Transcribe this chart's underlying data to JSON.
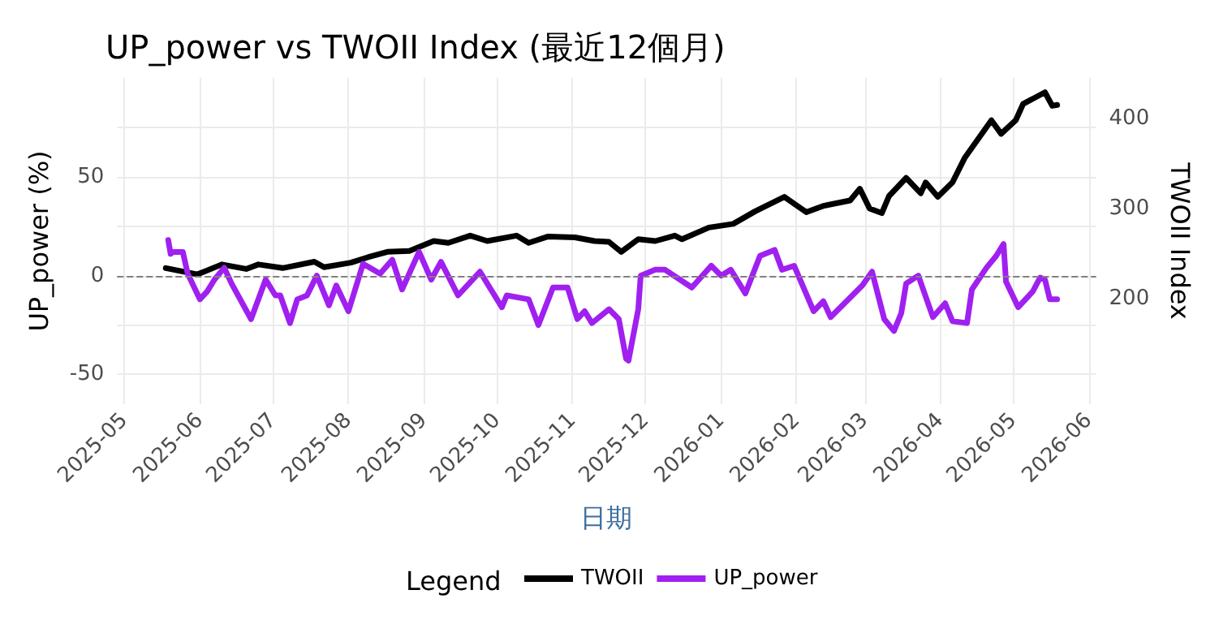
{
  "chart_data": {
    "type": "line",
    "title": "UP_power vs TWOII Index (最近12個月)",
    "xlabel": "日期",
    "ylabel": "UP_power (%)",
    "y2label": "TWOII Index",
    "legend_title": "Legend",
    "legend": "bottom",
    "grid": true,
    "xlim": [
      "2025-04-28",
      "2026-06-04"
    ],
    "xticks": [
      "2025-05",
      "2025-06",
      "2025-07",
      "2025-08",
      "2025-09",
      "2025-10",
      "2025-11",
      "2025-12",
      "2026-01",
      "2026-02",
      "2026-03",
      "2026-04",
      "2026-05",
      "2026-06"
    ],
    "ylim": [
      -65,
      100
    ],
    "yticks": [
      -50,
      {
        "value": -25,
        "label": null
      },
      0,
      {
        "value": 25,
        "label": null
      },
      50,
      {
        "value": 75,
        "label": null
      }
    ],
    "y2lim": [
      83,
      445
    ],
    "y2ticks": [
      200,
      300,
      400
    ],
    "ref_lines": [
      {
        "axis": "y",
        "value": 0,
        "label": null,
        "color": "#808080",
        "line_style": "dashed"
      }
    ],
    "series": [
      {
        "name": "TWOII",
        "color": "#000000",
        "axis": "y2",
        "x": [
          "2025-05-18",
          "2025-05-31",
          "2025-06-10",
          "2025-06-20",
          "2025-06-25",
          "2025-07-05",
          "2025-07-18",
          "2025-07-22",
          "2025-08-02",
          "2025-08-09",
          "2025-08-17",
          "2025-08-26",
          "2025-09-05",
          "2025-09-11",
          "2025-09-20",
          "2025-09-27",
          "2025-10-09",
          "2025-10-14",
          "2025-10-22",
          "2025-11-02",
          "2025-11-10",
          "2025-11-16",
          "2025-11-21",
          "2025-11-28",
          "2025-12-05",
          "2025-12-13",
          "2025-12-16",
          "2025-12-27",
          "2026-01-06",
          "2026-01-15",
          "2026-01-27",
          "2026-02-05",
          "2026-02-12",
          "2026-02-23",
          "2026-02-27",
          "2026-03-03",
          "2026-03-08",
          "2026-03-11",
          "2026-03-18",
          "2026-03-24",
          "2026-03-26",
          "2026-03-31",
          "2026-04-06",
          "2026-04-11",
          "2026-04-22",
          "2026-04-26",
          "2026-05-02",
          "2026-05-05",
          "2026-05-14",
          "2026-05-17",
          "2026-05-19"
        ],
        "values": [
          234,
          227,
          238,
          233,
          238,
          234,
          241,
          235,
          240,
          246,
          252,
          253,
          264,
          262,
          270,
          264,
          270,
          262,
          269,
          268,
          264,
          263,
          252,
          266,
          264,
          270,
          266,
          279,
          283,
          297,
          313,
          296,
          303,
          309,
          322,
          300,
          295,
          314,
          334,
          317,
          329,
          313,
          329,
          356,
          398,
          383,
          398,
          416,
          429,
          414,
          415
        ]
      },
      {
        "name": "UP_power",
        "color": "#a020f0",
        "x": [
          "2025-05-19",
          "2025-05-20",
          "2025-05-21",
          "2025-05-25",
          "2025-05-27",
          "2025-06-01",
          "2025-06-04",
          "2025-06-07",
          "2025-06-11",
          "2025-06-14",
          "2025-06-22",
          "2025-06-28",
          "2025-07-02",
          "2025-07-04",
          "2025-07-08",
          "2025-07-11",
          "2025-07-15",
          "2025-07-19",
          "2025-07-24",
          "2025-07-27",
          "2025-08-01",
          "2025-08-07",
          "2025-08-14",
          "2025-08-19",
          "2025-08-23",
          "2025-08-30",
          "2025-09-04",
          "2025-09-08",
          "2025-09-15",
          "2025-09-24",
          "2025-10-03",
          "2025-10-05",
          "2025-10-14",
          "2025-10-18",
          "2025-10-24",
          "2025-10-30",
          "2025-11-03",
          "2025-11-06",
          "2025-11-09",
          "2025-11-16",
          "2025-11-20",
          "2025-11-23",
          "2025-11-24",
          "2025-11-28",
          "2025-11-29",
          "2025-12-05",
          "2025-12-09",
          "2025-12-20",
          "2025-12-28",
          "2026-01-01",
          "2026-01-05",
          "2026-01-11",
          "2026-01-17",
          "2026-01-23",
          "2026-01-26",
          "2026-01-31",
          "2026-02-08",
          "2026-02-12",
          "2026-02-15",
          "2026-02-28",
          "2026-03-04",
          "2026-03-09",
          "2026-03-13",
          "2026-03-16",
          "2026-03-18",
          "2026-03-23",
          "2026-03-29",
          "2026-04-03",
          "2026-04-06",
          "2026-04-12",
          "2026-04-14",
          "2026-04-20",
          "2026-04-24",
          "2026-04-27",
          "2026-04-28",
          "2026-05-03",
          "2026-05-09",
          "2026-05-12",
          "2026-05-14",
          "2026-05-16",
          "2026-05-19"
        ],
        "values": [
          18,
          11,
          12,
          12,
          1,
          -12,
          -8,
          -2,
          4,
          -4,
          -22,
          -2,
          -10,
          -10,
          -24,
          -12,
          -10,
          0,
          -15,
          -5,
          -18,
          6,
          1,
          8,
          -7,
          12,
          -2,
          7,
          -10,
          2,
          -16,
          -10,
          -12,
          -25,
          -6,
          -6,
          -22,
          -18,
          -24,
          -17,
          -22,
          -42,
          -43,
          -17,
          0,
          3,
          3,
          -6,
          5,
          0,
          3,
          -9,
          10,
          13,
          3,
          5,
          -18,
          -13,
          -21,
          -5,
          2,
          -22,
          -28,
          -19,
          -4,
          0,
          -21,
          -14,
          -23,
          -24,
          -7,
          4,
          10,
          16,
          -3,
          -16,
          -8,
          -1,
          -2,
          -12,
          -12
        ]
      }
    ]
  }
}
